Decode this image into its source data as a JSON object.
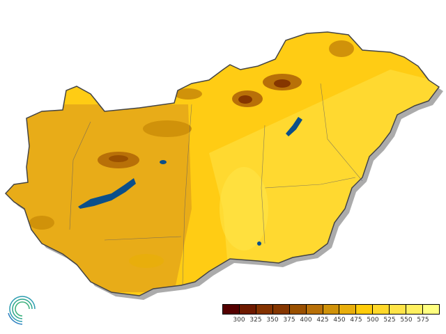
{
  "legend": {
    "colors": [
      "#540000",
      "#6e1a00",
      "#843200",
      "#853600",
      "#9a5000",
      "#b87008",
      "#d0920a",
      "#e8ae0c",
      "#ffcc0a",
      "#ffd82a",
      "#ffe448",
      "#fff060",
      "#ffff80"
    ],
    "labels": [
      "300",
      "325",
      "350",
      "375",
      "400",
      "425",
      "450",
      "475",
      "500",
      "525",
      "550",
      "575"
    ]
  },
  "map": {
    "base_color": "#ffcc14",
    "west_color": "#e8ac18",
    "east_color": "#ffd930",
    "lake_color": "#0b4f8a",
    "border_color": "#444444"
  }
}
